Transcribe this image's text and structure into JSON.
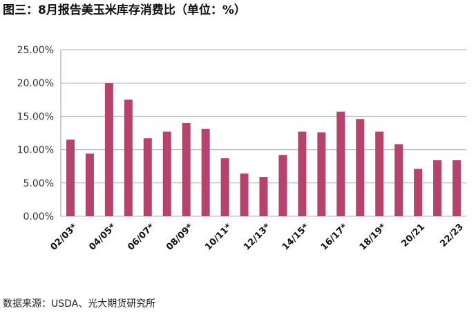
{
  "chart_data": {
    "type": "bar",
    "title": "图三：8月报告美玉米库存消费比（单位：%）",
    "source": "数据来源：USDA、光大期货研究所",
    "categories": [
      "02/03*",
      null,
      "04/05*",
      null,
      "06/07*",
      null,
      "08/09*",
      null,
      "10/11*",
      null,
      "12/13*",
      null,
      "14/15*",
      null,
      "16/17*",
      null,
      "18/19*",
      null,
      "20/21",
      null,
      "22/23"
    ],
    "values": [
      11.5,
      9.4,
      20.0,
      17.5,
      11.7,
      12.7,
      14.0,
      13.1,
      8.7,
      6.4,
      5.9,
      9.2,
      12.7,
      12.6,
      15.7,
      14.6,
      12.7,
      10.8,
      7.1,
      8.4,
      8.4
    ],
    "color": "#b8426c",
    "ylim": [
      0,
      25
    ],
    "yticks": [
      {
        "value": 0,
        "label": "0.00%"
      },
      {
        "value": 5,
        "label": "5.00%"
      },
      {
        "value": 10,
        "label": "10.00%"
      },
      {
        "value": 15,
        "label": "15.00%"
      },
      {
        "value": 20,
        "label": "20.00%"
      },
      {
        "value": 25,
        "label": "25.00%"
      }
    ],
    "grid": true
  }
}
